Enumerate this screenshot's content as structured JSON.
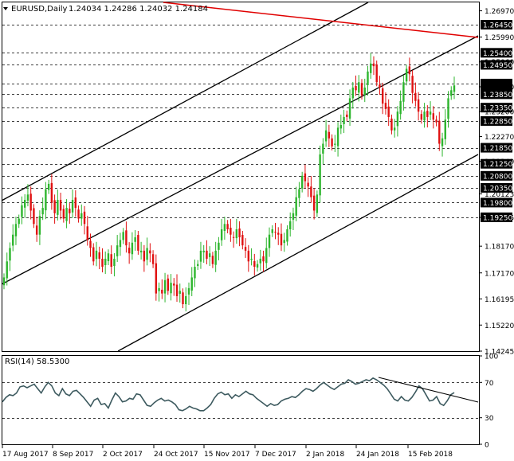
{
  "chart_data": [
    {
      "type": "candlestick",
      "title": "EURUSD,Daily",
      "ohlc_header": "1.24034 1.24286 1.24032 1.24184",
      "ylim": [
        1.14245,
        1.27285
      ],
      "price_ticks": [
        "1.26970",
        "1.25990",
        "1.25060",
        "1.24130",
        "1.23200",
        "1.22270",
        "1.21340",
        "1.20123",
        "1.19245",
        "1.18170",
        "1.17170",
        "1.16195",
        "1.15220",
        "1.14245"
      ],
      "level_labels": [
        "1.26450",
        "1.25400",
        "1.24950",
        "1.24250",
        "1.23850",
        "1.23350",
        "1.22850",
        "1.21850",
        "1.21250",
        "1.20800",
        "1.20350",
        "1.19800",
        "1.19250"
      ],
      "levels": [
        1.2645,
        1.254,
        1.2495,
        1.2425,
        1.2385,
        1.2335,
        1.2285,
        1.2185,
        1.2125,
        1.208,
        1.2035,
        1.198,
        1.1925
      ],
      "current_price": "1.24184",
      "x_labels": [
        "17 Aug 2017",
        "8 Sep 2017",
        "2 Oct 2017",
        "24 Oct 2017",
        "15 Nov 2017",
        "7 Dec 2017",
        "2 Jan 2018",
        "24 Jan 2018",
        "15 Feb 2018"
      ],
      "closes": [
        1.17,
        1.176,
        1.181,
        1.186,
        1.19,
        1.192,
        1.197,
        1.199,
        1.201,
        1.195,
        1.19,
        1.186,
        1.193,
        1.196,
        1.203,
        1.205,
        1.198,
        1.194,
        1.199,
        1.195,
        1.192,
        1.196,
        1.194,
        1.199,
        1.196,
        1.192,
        1.194,
        1.19,
        1.184,
        1.181,
        1.176,
        1.18,
        1.177,
        1.174,
        1.177,
        1.179,
        1.174,
        1.177,
        1.182,
        1.184,
        1.187,
        1.182,
        1.179,
        1.183,
        1.185,
        1.18,
        1.18,
        1.176,
        1.181,
        1.179,
        1.175,
        1.164,
        1.166,
        1.164,
        1.169,
        1.165,
        1.168,
        1.167,
        1.163,
        1.165,
        1.16,
        1.163,
        1.166,
        1.17,
        1.174,
        1.175,
        1.18,
        1.18,
        1.177,
        1.179,
        1.175,
        1.18,
        1.183,
        1.188,
        1.19,
        1.188,
        1.186,
        1.185,
        1.188,
        1.185,
        1.182,
        1.18,
        1.176,
        1.177,
        1.174,
        1.175,
        1.177,
        1.176,
        1.181,
        1.186,
        1.188,
        1.187,
        1.186,
        1.182,
        1.184,
        1.188,
        1.191,
        1.194,
        1.2,
        1.203,
        1.208,
        1.206,
        1.204,
        1.2,
        1.195,
        1.201,
        1.216,
        1.22,
        1.225,
        1.222,
        1.219,
        1.22,
        1.226,
        1.227,
        1.23,
        1.23,
        1.237,
        1.241,
        1.24,
        1.243,
        1.238,
        1.241,
        1.247,
        1.25,
        1.249,
        1.243,
        1.241,
        1.235,
        1.233,
        1.23,
        1.225,
        1.226,
        1.232,
        1.236,
        1.243,
        1.248,
        1.246,
        1.239,
        1.236,
        1.232,
        1.229,
        1.232,
        1.23,
        1.232,
        1.229,
        1.228,
        1.22,
        1.222,
        1.229,
        1.237,
        1.24,
        1.2418
      ]
    },
    {
      "type": "line",
      "title": "RSI(14) 58.5300",
      "ylim": [
        0,
        100
      ],
      "y_ticks": [
        "100",
        "70",
        "30",
        "0"
      ],
      "levels": [
        70,
        30
      ],
      "values": [
        48.0,
        53.0,
        56.0,
        55.0,
        58.0,
        65.0,
        66.0,
        64.0,
        66.0,
        68.0,
        63.0,
        58.0,
        65.0,
        70.0,
        66.0,
        58.0,
        55.0,
        63.0,
        57.0,
        55.0,
        60.0,
        61.0,
        57.0,
        53.0,
        48.0,
        43.0,
        50.0,
        52.0,
        45.0,
        46.0,
        41.0,
        50.0,
        58.0,
        54.0,
        48.0,
        49.0,
        52.0,
        51.0,
        57.0,
        56.0,
        50.0,
        44.0,
        43.0,
        47.0,
        50.0,
        52.0,
        49.0,
        50.0,
        48.0,
        45.0,
        39.0,
        38.0,
        40.0,
        43.0,
        41.0,
        40.0,
        38.0,
        38.0,
        41.0,
        45.0,
        52.0,
        57.0,
        59.0,
        56.0,
        57.0,
        52.0,
        56.0,
        54.0,
        57.0,
        60.0,
        57.0,
        56.0,
        52.0,
        49.0,
        46.0,
        43.0,
        46.0,
        44.0,
        45.0,
        49.0,
        51.0,
        52.0,
        54.0,
        53.0,
        56.0,
        60.0,
        63.0,
        62.0,
        60.0,
        63.0,
        67.0,
        70.0,
        67.0,
        64.0,
        62.0,
        65.0,
        68.0,
        69.0,
        73.0,
        71.0,
        68.0,
        69.0,
        71.0,
        73.0,
        72.0,
        75.0,
        73.0,
        70.0,
        67.0,
        63.0,
        57.0,
        51.0,
        49.0,
        54.0,
        50.0,
        49.0,
        53.0,
        59.0,
        66.0,
        63.0,
        56.0,
        49.0,
        50.0,
        54.0,
        46.0,
        44.0,
        49.0,
        56.0,
        58.5
      ]
    }
  ]
}
